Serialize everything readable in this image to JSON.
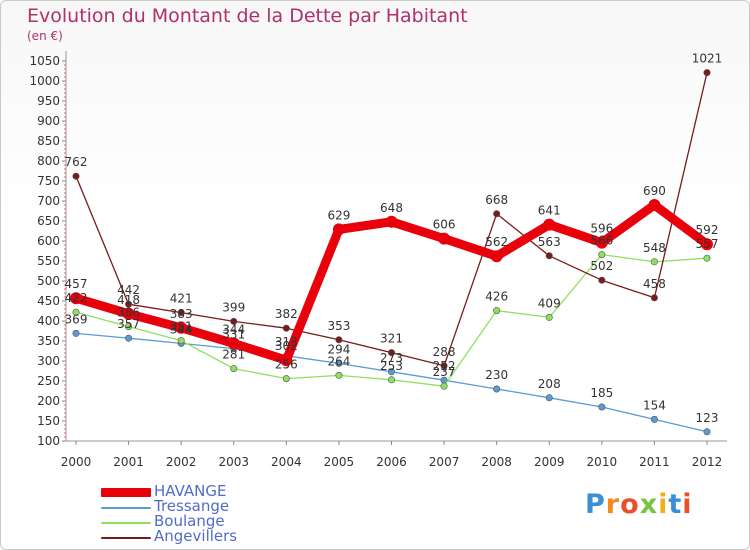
{
  "chart_data": {
    "type": "line",
    "title": "Evolution du Montant de la Dette par Habitant",
    "subtitle": "(en €)",
    "x": [
      "2000",
      "2001",
      "2002",
      "2003",
      "2004",
      "2005",
      "2006",
      "2007",
      "2008",
      "2009",
      "2010",
      "2011",
      "2012"
    ],
    "ylim": [
      100,
      1050
    ],
    "yticks": [
      100,
      150,
      200,
      250,
      300,
      350,
      400,
      450,
      500,
      550,
      600,
      650,
      700,
      750,
      800,
      850,
      900,
      950,
      1000,
      1050
    ],
    "grid": false,
    "legend_position": "bottom-left",
    "series": [
      {
        "name": "HAVANGE",
        "color": "#e8000b",
        "values": [
          457,
          418,
          383,
          344,
          302,
          629,
          648,
          606,
          562,
          641,
          596,
          690,
          592
        ]
      },
      {
        "name": "Tressange",
        "color": "#5b9bd5",
        "values": [
          369,
          357,
          344,
          331,
          313,
          294,
          273,
          252,
          230,
          208,
          185,
          154,
          123
        ]
      },
      {
        "name": "Boulange",
        "color": "#90e060",
        "values": [
          422,
          386,
          351,
          281,
          256,
          264,
          253,
          237,
          426,
          409,
          566,
          548,
          557
        ]
      },
      {
        "name": "Angevillers",
        "color": "#7a1a1a",
        "values": [
          762,
          442,
          421,
          399,
          382,
          353,
          321,
          288,
          668,
          563,
          502,
          458,
          1021
        ]
      }
    ]
  },
  "logo": {
    "text": "Proxiti"
  }
}
